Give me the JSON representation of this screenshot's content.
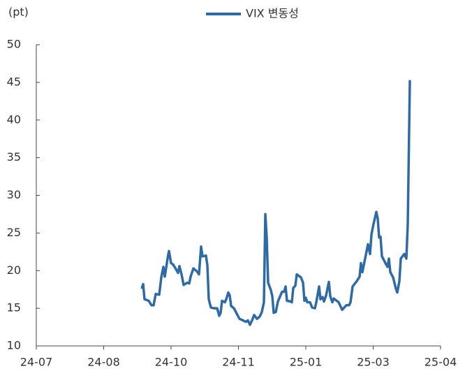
{
  "chart_data": {
    "type": "line",
    "y_unit": "(pt)",
    "series": [
      {
        "name": "VIX 변동성",
        "color": "#2e6aa6",
        "x": [
          1.565,
          1.585,
          1.606,
          1.668,
          1.71,
          1.741,
          1.772,
          1.824,
          1.855,
          1.886,
          1.907,
          1.948,
          1.969,
          2.0,
          2.031,
          2.073,
          2.104,
          2.124,
          2.155,
          2.187,
          2.238,
          2.269,
          2.29,
          2.332,
          2.383,
          2.415,
          2.446,
          2.466,
          2.518,
          2.539,
          2.56,
          2.591,
          2.632,
          2.684,
          2.715,
          2.736,
          2.756,
          2.798,
          2.819,
          2.85,
          2.87,
          2.891,
          2.933,
          2.974,
          3.016,
          3.067,
          3.109,
          3.14,
          3.171,
          3.202,
          3.233,
          3.275,
          3.316,
          3.347,
          3.378,
          3.399,
          3.42,
          3.44,
          3.482,
          3.503,
          3.523,
          3.554,
          3.585,
          3.648,
          3.679,
          3.699,
          3.72,
          3.772,
          3.793,
          3.813,
          3.845,
          3.865,
          3.927,
          3.959,
          3.979,
          4.0,
          4.021,
          4.062,
          4.093,
          4.135,
          4.155,
          4.197,
          4.218,
          4.249,
          4.269,
          4.301,
          4.342,
          4.363,
          4.394,
          4.415,
          4.487,
          4.539,
          4.601,
          4.642,
          4.663,
          4.694,
          4.756,
          4.798,
          4.819,
          4.839,
          4.891,
          4.922,
          4.953,
          4.974,
          5.005,
          5.047,
          5.067,
          5.088,
          5.109,
          5.13,
          5.181,
          5.212,
          5.233,
          5.254,
          5.295,
          5.337,
          5.358,
          5.389,
          5.409,
          5.461,
          5.492,
          5.513,
          5.544
        ],
        "values": [
          17.6,
          18.2,
          16.2,
          16.0,
          15.4,
          15.4,
          16.9,
          16.8,
          19.1,
          20.5,
          19.2,
          21.6,
          22.6,
          21.0,
          20.8,
          20.2,
          19.7,
          20.6,
          19.5,
          18.1,
          18.4,
          18.3,
          19.2,
          20.3,
          19.9,
          19.5,
          23.2,
          21.9,
          22.0,
          20.7,
          16.2,
          15.1,
          15.0,
          15.0,
          14.0,
          14.4,
          16.0,
          15.8,
          16.2,
          17.1,
          16.7,
          15.3,
          15.0,
          14.3,
          13.6,
          13.4,
          13.2,
          13.4,
          12.8,
          13.4,
          14.1,
          13.6,
          13.9,
          14.5,
          15.8,
          27.5,
          24.4,
          18.4,
          17.4,
          16.6,
          14.4,
          14.5,
          15.9,
          17.2,
          17.2,
          17.9,
          16.0,
          15.9,
          15.8,
          17.7,
          18.0,
          19.5,
          19.1,
          18.4,
          16.0,
          16.4,
          15.8,
          15.8,
          15.1,
          15.0,
          15.8,
          17.9,
          16.2,
          16.5,
          15.9,
          16.7,
          18.5,
          16.6,
          15.8,
          16.3,
          15.8,
          14.8,
          15.4,
          15.4,
          15.8,
          17.9,
          18.6,
          19.2,
          21.0,
          19.8,
          22.1,
          23.5,
          22.2,
          24.8,
          26.2,
          27.8,
          26.9,
          24.4,
          24.5,
          21.9,
          21.0,
          20.5,
          21.6,
          19.8,
          19.1,
          17.6,
          17.1,
          18.6,
          21.6,
          22.2,
          21.6,
          26.2,
          45.3
        ]
      }
    ],
    "xlim": [
      0,
      6
    ],
    "xticks": [
      {
        "value": 0,
        "label": "24-07"
      },
      {
        "value": 1,
        "label": "24-08"
      },
      {
        "value": 2,
        "label": "24-10"
      },
      {
        "value": 3,
        "label": "24-11"
      },
      {
        "value": 4,
        "label": "25-01"
      },
      {
        "value": 5,
        "label": "25-03"
      },
      {
        "value": 6,
        "label": "25-04"
      }
    ],
    "ylim": [
      10,
      50
    ],
    "yticks": [
      10,
      15,
      20,
      25,
      30,
      35,
      40,
      45,
      50
    ],
    "legend": "top",
    "grid": false
  }
}
